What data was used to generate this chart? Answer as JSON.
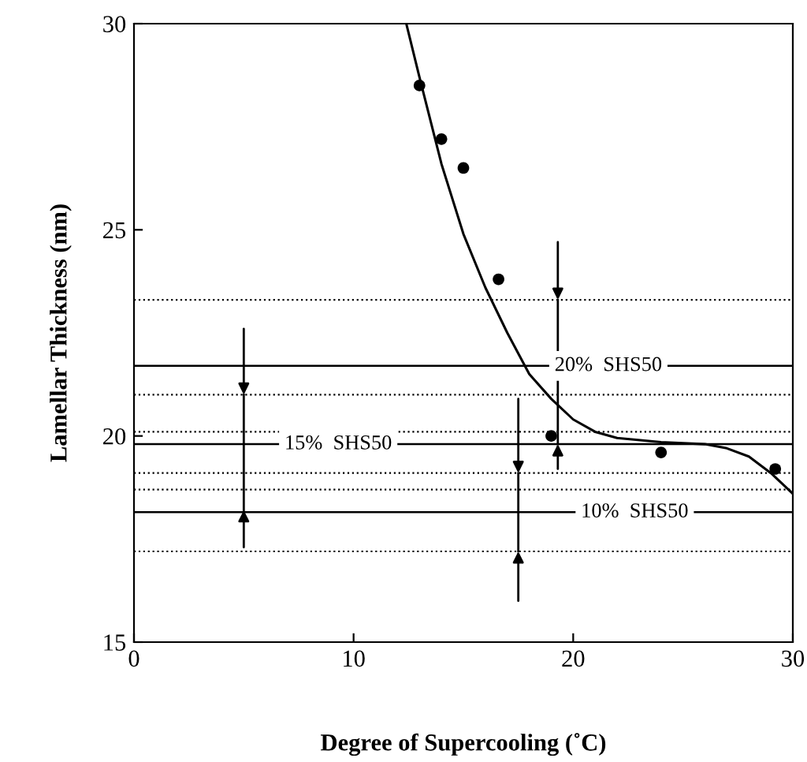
{
  "chart_data": {
    "type": "scatter",
    "xlabel": "Degree of Supercooling (˚C)",
    "ylabel": "Lamellar Thickness (nm)",
    "xlim": [
      0,
      30
    ],
    "ylim": [
      15,
      30
    ],
    "xticks": [
      0,
      10,
      20,
      30
    ],
    "yticks": [
      15,
      20,
      25,
      30
    ],
    "grid": false,
    "marker": "circle",
    "series": [
      {
        "color": "#000000",
        "x": [
          13,
          14,
          15,
          16.6,
          19,
          24,
          29.2
        ],
        "values": [
          28.5,
          27.2,
          26.5,
          23.8,
          20.0,
          19.6,
          19.2
        ]
      },
      {
        "type": "line",
        "marker": "none",
        "color": "#000000",
        "x": [
          12.4,
          13,
          14,
          15,
          16,
          17,
          18,
          19,
          20,
          21,
          22,
          24,
          26,
          27,
          28,
          29,
          30
        ],
        "values": [
          30,
          28.7,
          26.6,
          24.9,
          23.6,
          22.5,
          21.5,
          20.9,
          20.4,
          20.1,
          19.95,
          19.85,
          19.8,
          19.7,
          19.5,
          19.1,
          18.6
        ]
      }
    ],
    "ref_lines": [
      {
        "axis": "y",
        "value": 21.7,
        "label": "20%  SHS50"
      },
      {
        "axis": "y",
        "value": 19.8,
        "label": "15%  SHS50"
      },
      {
        "axis": "y",
        "value": 18.15,
        "label": "10%  SHS50"
      },
      {
        "axis": "y",
        "value": 23.3,
        "line_style": "dotted"
      },
      {
        "axis": "y",
        "value": 21.0,
        "line_style": "dotted"
      },
      {
        "axis": "y",
        "value": 20.1,
        "line_style": "dotted"
      },
      {
        "axis": "y",
        "value": 19.1,
        "line_style": "dotted"
      },
      {
        "axis": "y",
        "value": 18.7,
        "line_style": "dotted"
      },
      {
        "axis": "y",
        "value": 17.2,
        "line_style": "dotted"
      }
    ]
  }
}
